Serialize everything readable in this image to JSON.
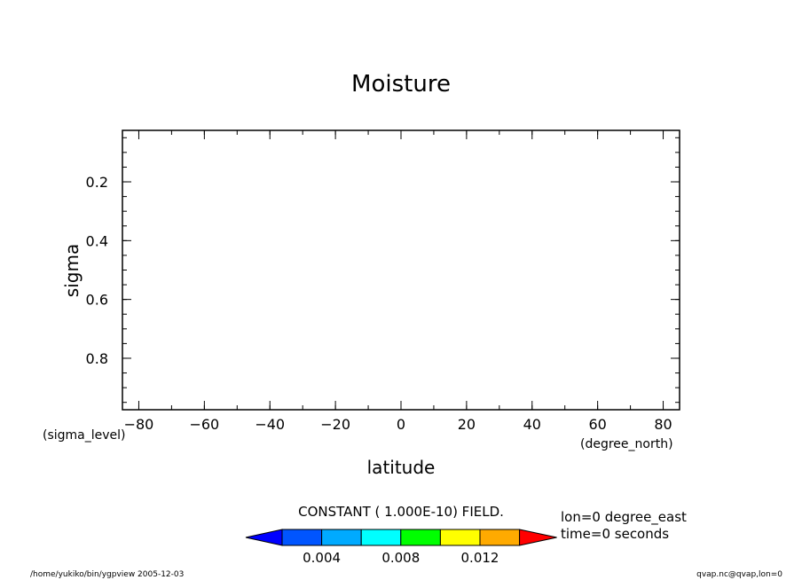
{
  "chart_data": {
    "type": "heatmap",
    "title": "Moisture",
    "xlabel": "latitude",
    "xunits": "(degree_north)",
    "ylabel": "sigma",
    "yunits": "(sigma_level)",
    "xlim": [
      -85,
      85
    ],
    "ylim": [
      0.025,
      0.975
    ],
    "y_inverted": true,
    "xticks": [
      -80,
      -60,
      -40,
      -20,
      0,
      20,
      40,
      60,
      80
    ],
    "yticks": [
      0.2,
      0.4,
      0.6,
      0.8
    ],
    "field_note": "CONSTANT ( 1.000E-10) FIELD.",
    "colorbar": {
      "colors": [
        "#0000ff",
        "#0055ff",
        "#00aaff",
        "#00ffff",
        "#00ff00",
        "#ffff00",
        "#ffaa00",
        "#ff0000"
      ],
      "tick_labels": [
        "0.004",
        "0.008",
        "0.012"
      ]
    },
    "info_lines": [
      "lon=0 degree_east",
      "time=0 seconds"
    ]
  },
  "footer": {
    "left": "/home/yukiko/bin/ygpview  2005-12-03",
    "right": "qvap.nc@qvap,lon=0"
  }
}
